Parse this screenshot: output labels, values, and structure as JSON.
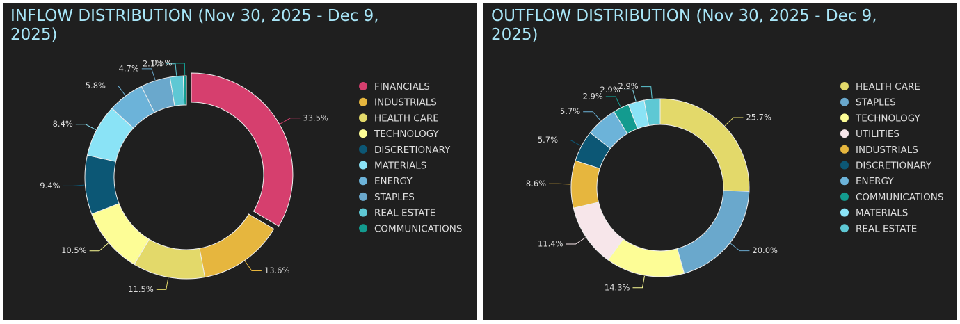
{
  "chart_data": [
    {
      "type": "pie",
      "title": "INFLOW DISTRIBUTION (Nov 30, 2025 - Dec 9, 2025)",
      "categories": [
        "FINANCIALS",
        "INDUSTRIALS",
        "HEALTH CARE",
        "TECHNOLOGY",
        "DISCRETIONARY",
        "MATERIALS",
        "ENERGY",
        "STAPLES",
        "REAL ESTATE",
        "COMMUNICATIONS"
      ],
      "values": [
        33.5,
        13.6,
        11.5,
        10.5,
        9.4,
        8.4,
        5.8,
        4.7,
        2.1,
        0.5
      ],
      "value_labels": [
        "33.5%",
        "13.6%",
        "11.5%",
        "10.5%",
        "9.4%",
        "8.4%",
        "5.8%",
        "4.7%",
        "2.1%",
        "0.5%"
      ],
      "colors": [
        "#d63f6e",
        "#e6b63e",
        "#e3d96a",
        "#fdfd96",
        "#0c5775",
        "#8ae3f6",
        "#6cb3d9",
        "#6aa8cc",
        "#5ec8d4",
        "#139b8f"
      ],
      "legend": "right"
    },
    {
      "type": "pie",
      "title": "OUTFLOW DISTRIBUTION (Nov 30, 2025 - Dec 9, 2025)",
      "categories": [
        "HEALTH CARE",
        "STAPLES",
        "TECHNOLOGY",
        "UTILITIES",
        "INDUSTRIALS",
        "DISCRETIONARY",
        "ENERGY",
        "COMMUNICATIONS",
        "MATERIALS",
        "REAL ESTATE"
      ],
      "values": [
        25.7,
        20.0,
        14.3,
        11.4,
        8.6,
        5.7,
        5.7,
        2.9,
        2.9,
        2.9
      ],
      "value_labels": [
        "25.7%",
        "20.0%",
        "14.3%",
        "11.4%",
        "8.6%",
        "5.7%",
        "5.7%",
        "2.9%",
        "2.9%",
        "2.9%"
      ],
      "colors": [
        "#e3d96a",
        "#6aa8cc",
        "#fdfd96",
        "#f7e6ea",
        "#e6b63e",
        "#0c5775",
        "#6cb3d9",
        "#139b8f",
        "#8ae3f6",
        "#5ec8d4"
      ],
      "legend": "right"
    }
  ]
}
